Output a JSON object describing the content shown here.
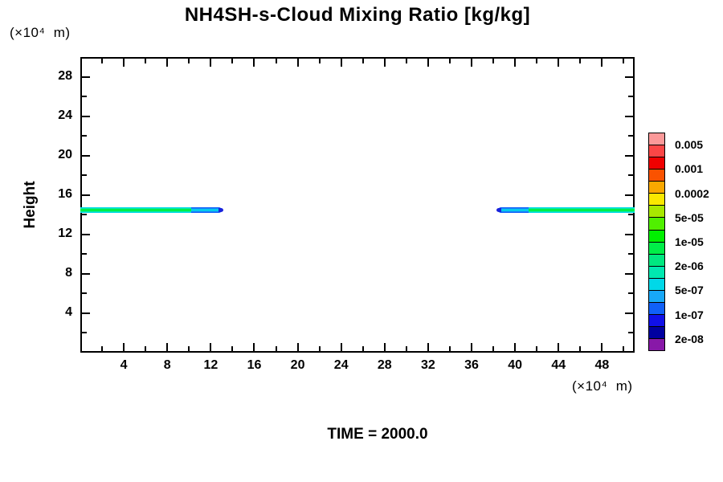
{
  "header": {
    "title": "NH4SH-s-Cloud Mixing Ratio [kg/kg]"
  },
  "axes": {
    "y_unit": "(×10⁴  m)",
    "x_unit": "(×10⁴  m)",
    "y_axis_name": "Height"
  },
  "footer": {
    "time_label": "TIME = 2000.0"
  },
  "chart_data": {
    "type": "heatmap",
    "subtype": "filled-contour-cross-section",
    "title": "NH4SH-s-Cloud Mixing Ratio [kg/kg]",
    "xlabel": "(×10⁴ m)",
    "ylabel": "Height (×10⁴ m)",
    "xlim": [
      0,
      51
    ],
    "ylim": [
      0,
      30
    ],
    "grid": false,
    "annotation": "TIME = 2000.0",
    "x_ticks": {
      "minor_step": 2,
      "min": 2,
      "max": 50,
      "label_step": 4,
      "labels": [
        "4",
        "8",
        "12",
        "16",
        "20",
        "24",
        "28",
        "32",
        "36",
        "40",
        "44",
        "48"
      ],
      "label_values": [
        4,
        8,
        12,
        16,
        20,
        24,
        28,
        32,
        36,
        40,
        44,
        48
      ]
    },
    "y_ticks": {
      "minor_step": 2,
      "min": 2,
      "max": 28,
      "label_step": 4,
      "labels": [
        "28",
        "24",
        "20",
        "16",
        "12",
        "8",
        "4"
      ],
      "label_values": [
        28,
        24,
        20,
        16,
        12,
        8,
        4
      ]
    },
    "colorbar": {
      "position": "right",
      "labels_top_to_bottom": [
        "0.005",
        "0.001",
        "0.0002",
        "5e-05",
        "1e-05",
        "2e-06",
        "5e-07",
        "1e-07",
        "2e-08"
      ],
      "labeled_boundary_indices": [
        1,
        3,
        5,
        7,
        9,
        11,
        13,
        15,
        17
      ],
      "cell_colors_top_to_bottom": [
        "#fb9999",
        "#fb4646",
        "#f00000",
        "#fa5200",
        "#faa800",
        "#fae800",
        "#a8e800",
        "#50f000",
        "#00f000",
        "#00ee48",
        "#00e880",
        "#00e8b0",
        "#00d8e8",
        "#18a8f8",
        "#1060f8",
        "#1010e8",
        "#0000a0",
        "#8818a8"
      ]
    },
    "bands": [
      {
        "name": "left-cloud-band",
        "height_value": 14.5,
        "thickness_value": 0.55,
        "x_start": 0,
        "x_end": 13.0,
        "tip_direction": "right",
        "core_color": "#00ee48",
        "inner_edge_color": "#00e8b0",
        "outer_edge_color": "#00d8e8",
        "tip_core_color": "#00d8e8",
        "tip_mid_color": "#18a8f8",
        "tip_edge_color": "#1060f8",
        "tip_point_color": "#1822dc"
      },
      {
        "name": "right-cloud-band",
        "height_value": 14.5,
        "thickness_value": 0.55,
        "x_start": 38.4,
        "x_end": 51.0,
        "tip_direction": "left",
        "core_color": "#00ee48",
        "inner_edge_color": "#00e8b0",
        "outer_edge_color": "#00d8e8",
        "tip_core_color": "#00d8e8",
        "tip_mid_color": "#18a8f8",
        "tip_edge_color": "#1060f8",
        "tip_point_color": "#1822dc"
      }
    ]
  }
}
